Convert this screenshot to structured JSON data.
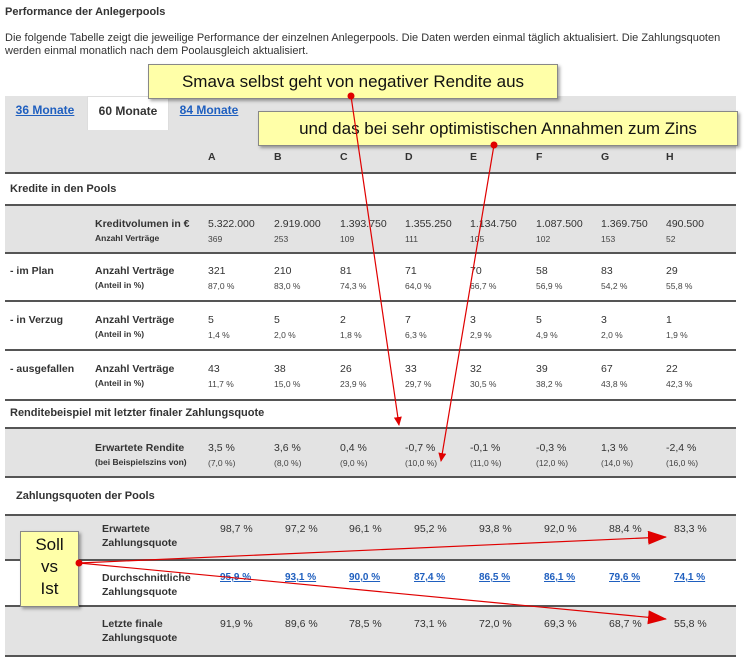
{
  "page": {
    "title": "Performance der Anlegerpools",
    "intro": "Die folgende Tabelle zeigt die jeweilige Performance der einzelnen Anlegerpools. Die Daten werden einmal täglich aktualisiert. Die Zahlungsquoten werden einmal monatlich nach dem Poolausgleich aktualisiert."
  },
  "tabs": [
    {
      "label": "36 Monate",
      "active": false
    },
    {
      "label": "60 Monate",
      "active": true
    },
    {
      "label": "84 Monate",
      "active": false
    }
  ],
  "columns": [
    "A",
    "B",
    "C",
    "D",
    "E",
    "F",
    "G",
    "H"
  ],
  "sections": {
    "kredite": "Kredite in den Pools",
    "rendite": "Renditebeispiel mit letzter finaler Zahlungsquote",
    "zahlungsquoten": "Zahlungsquoten der Pools"
  },
  "kreditvolumen": {
    "label": "Kreditvolumen in €",
    "sublabel": "Anzahl Verträge",
    "values": [
      "5.322.000",
      "2.919.000",
      "1.393.750",
      "1.355.250",
      "1.134.750",
      "1.087.500",
      "1.369.750",
      "490.500"
    ],
    "counts": [
      "369",
      "253",
      "109",
      "111",
      "105",
      "102",
      "153",
      "52"
    ]
  },
  "status_rows": [
    {
      "row_label": "- im Plan",
      "label": "Anzahl Verträge",
      "sublabel": "(Anteil in %)",
      "values": [
        "321",
        "210",
        "81",
        "71",
        "70",
        "58",
        "83",
        "29"
      ],
      "shares": [
        "87,0 %",
        "83,0 %",
        "74,3 %",
        "64,0 %",
        "66,7 %",
        "56,9 %",
        "54,2 %",
        "55,8 %"
      ]
    },
    {
      "row_label": "- in Verzug",
      "label": "Anzahl Verträge",
      "sublabel": "(Anteil in %)",
      "values": [
        "5",
        "5",
        "2",
        "7",
        "3",
        "5",
        "3",
        "1"
      ],
      "shares": [
        "1,4 %",
        "2,0 %",
        "1,8 %",
        "6,3 %",
        "2,9 %",
        "4,9 %",
        "2,0 %",
        "1,9 %"
      ]
    },
    {
      "row_label": "- ausgefallen",
      "label": "Anzahl Verträge",
      "sublabel": "(Anteil in %)",
      "values": [
        "43",
        "38",
        "26",
        "33",
        "32",
        "39",
        "67",
        "22"
      ],
      "shares": [
        "11,7 %",
        "15,0 %",
        "23,9 %",
        "29,7 %",
        "30,5 %",
        "38,2 %",
        "43,8 %",
        "42,3 %"
      ]
    }
  ],
  "rendite": {
    "label": "Erwartete Rendite",
    "sublabel": "(bei Beispielszins von)",
    "values": [
      "3,5 %",
      "3,6 %",
      "0,4 %",
      "-0,7 %",
      "-0,1 %",
      "-0,3 %",
      "1,3 %",
      "-2,4 %"
    ],
    "zins": [
      "(7,0 %)",
      "(8,0 %)",
      "(9,0 %)",
      "(10,0 %)",
      "(11,0 %)",
      "(12,0 %)",
      "(14,0 %)",
      "(16,0 %)"
    ]
  },
  "quoten": [
    {
      "label1": "Erwartete",
      "label2": "Zahlungsquote",
      "link": false,
      "values": [
        "98,7 %",
        "97,2 %",
        "96,1 %",
        "95,2 %",
        "93,8 %",
        "92,0 %",
        "88,4 %",
        "83,3 %"
      ]
    },
    {
      "label1": "Durchschnittliche",
      "label2": "Zahlungsquote",
      "link": true,
      "values": [
        "95,9 %",
        "93,1 %",
        "90,0 %",
        "87,4 %",
        "86,5 %",
        "86,1 %",
        "79,6 %",
        "74,1 %"
      ]
    },
    {
      "label1": "Letzte finale",
      "label2": "Zahlungsquote",
      "link": false,
      "values": [
        "91,9 %",
        "89,6 %",
        "78,5 %",
        "73,1 %",
        "72,0 %",
        "69,3 %",
        "68,7 %",
        "55,8 %"
      ]
    }
  ],
  "callouts": {
    "top": "Smava selbst geht von negativer Rendite aus",
    "second": "und das bei sehr optimistischen Annahmen zum Zins",
    "soll_vs_ist": [
      "Soll",
      "vs",
      "Ist"
    ]
  },
  "colors": {
    "link": "#1f5fbf",
    "callout_bg": "#ffffa8",
    "arrow": "#e00000",
    "row_gray": "#e3e3e3"
  }
}
